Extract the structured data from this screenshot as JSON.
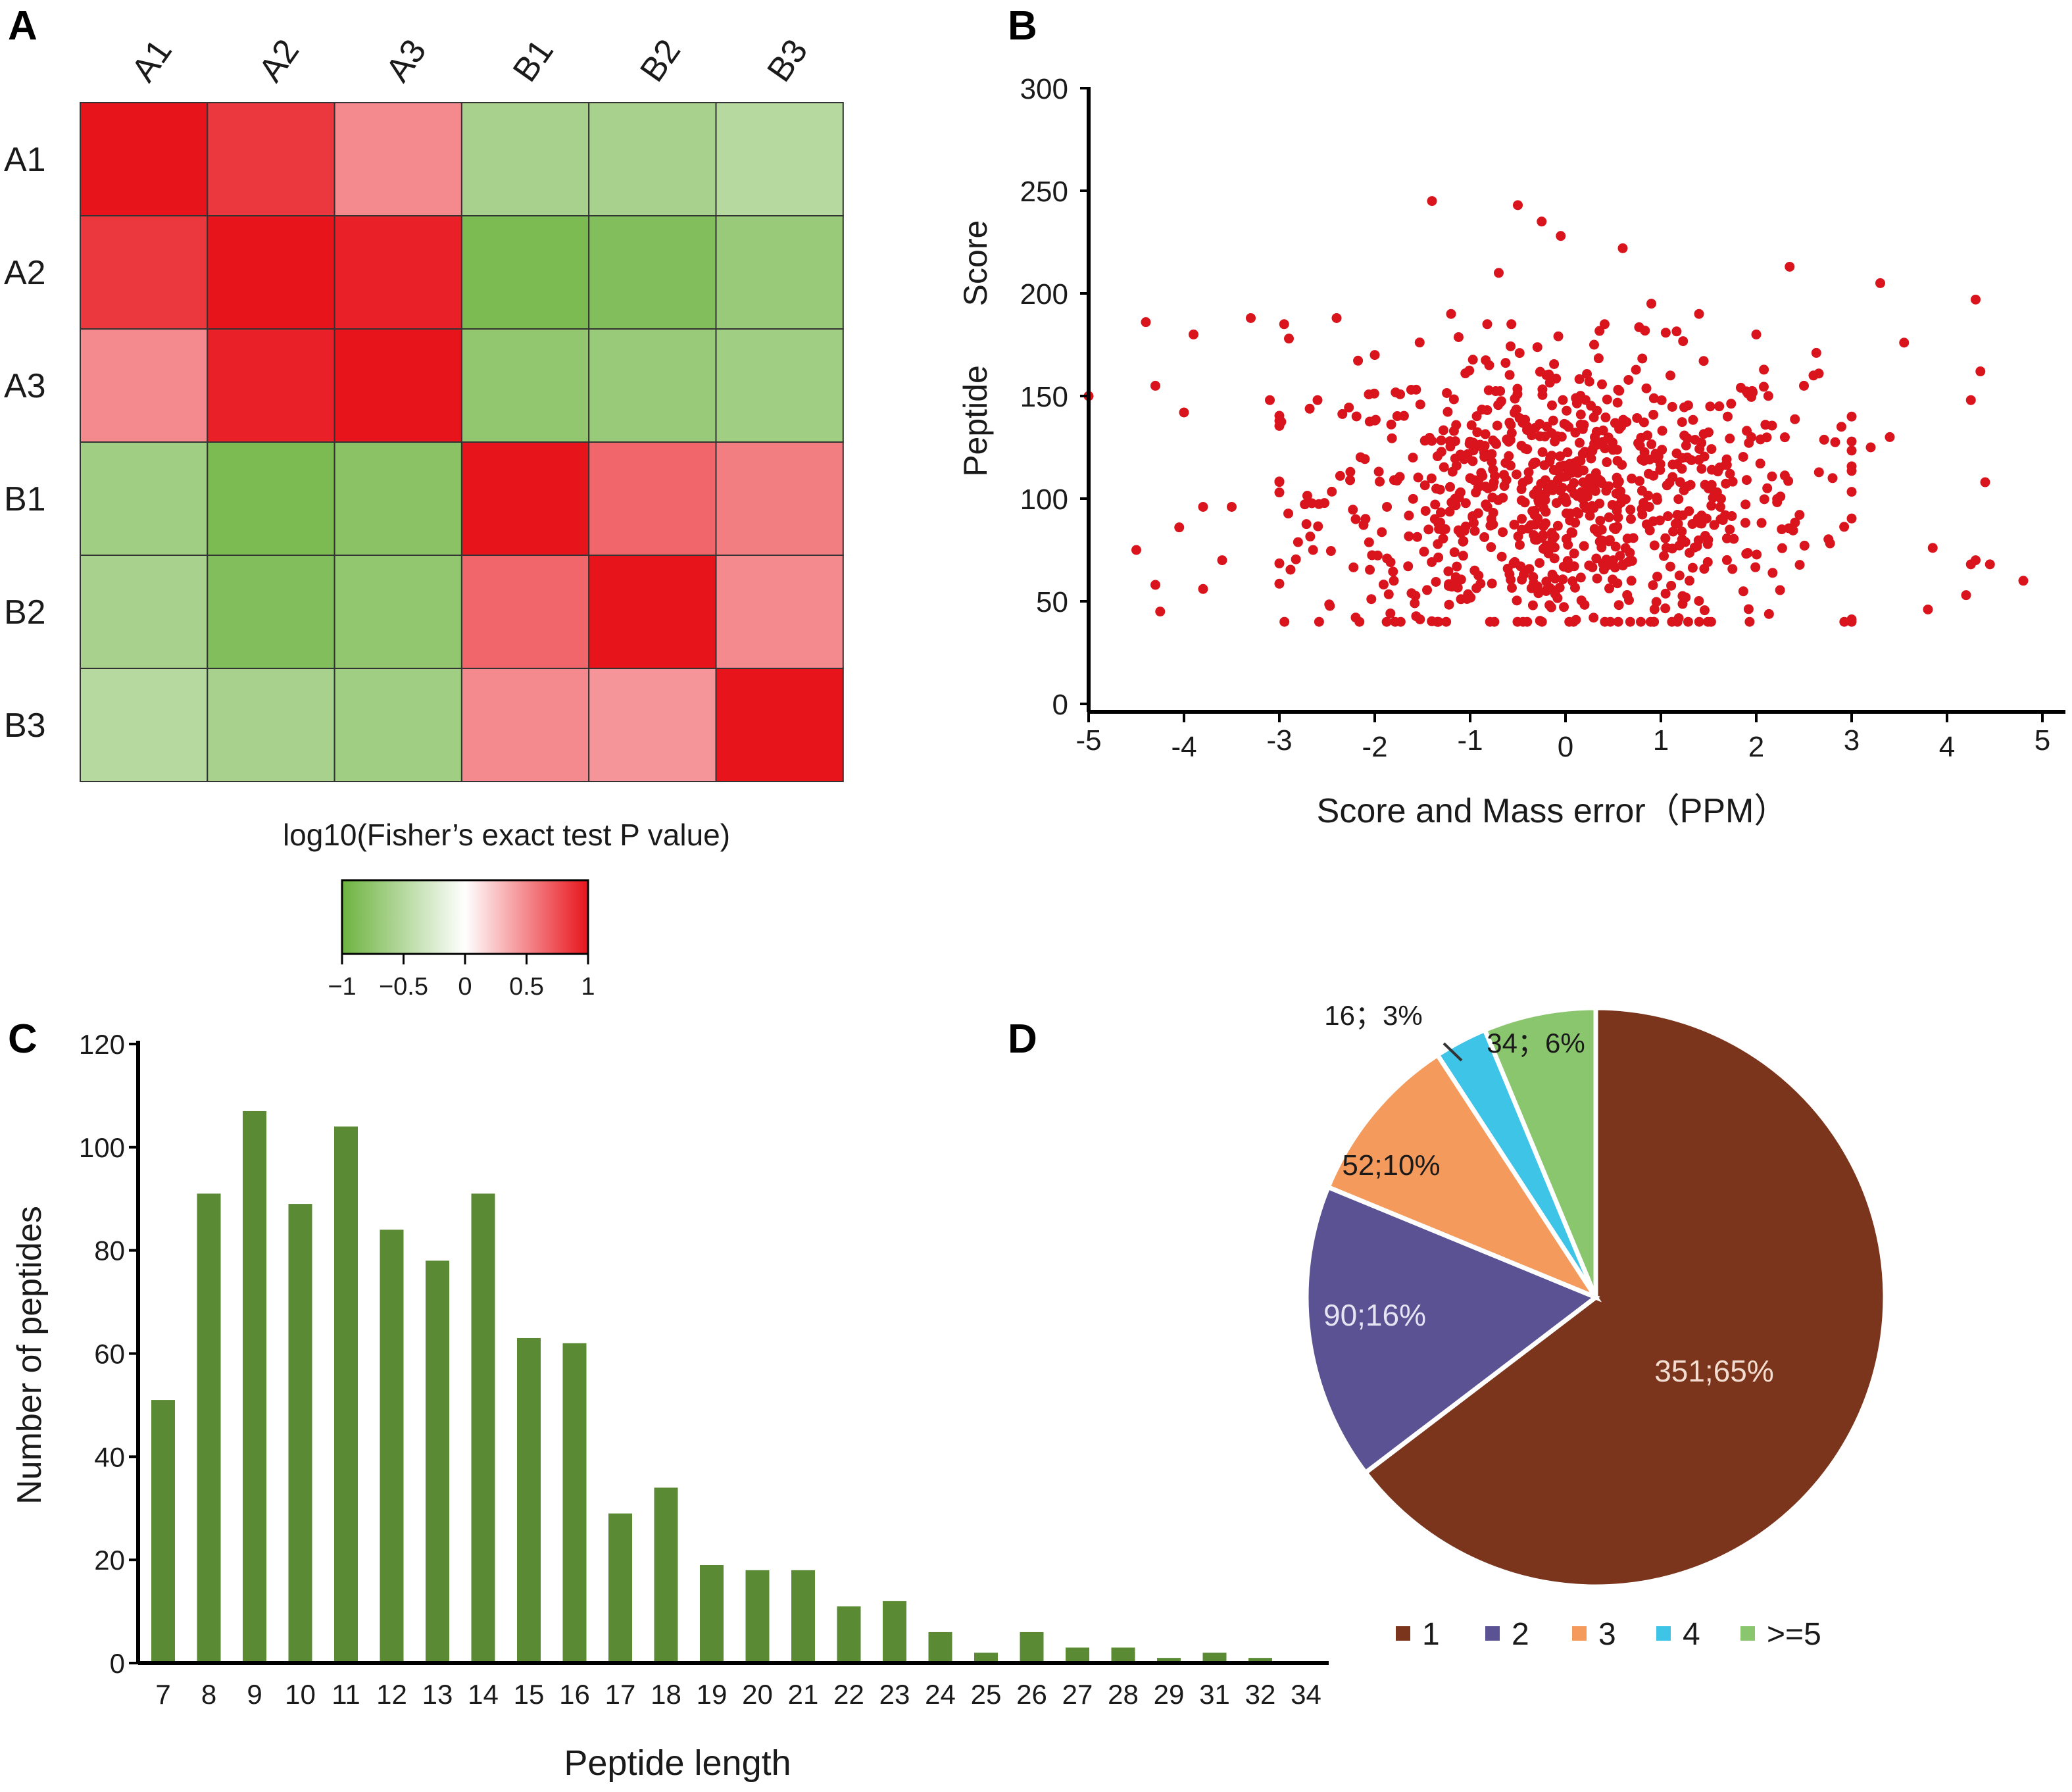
{
  "panels": {
    "A": {
      "letter": "A"
    },
    "B": {
      "letter": "B"
    },
    "C": {
      "letter": "C"
    },
    "D": {
      "letter": "D"
    }
  },
  "chart_data": [
    {
      "type": "heatmap",
      "panel": "A",
      "rows": [
        "A1",
        "A2",
        "A3",
        "B1",
        "B2",
        "B3"
      ],
      "columns": [
        "A1",
        "A2",
        "A3",
        "B1",
        "B2",
        "B3"
      ],
      "values": [
        [
          1.0,
          0.85,
          0.5,
          -0.6,
          -0.6,
          -0.5
        ],
        [
          0.85,
          1.0,
          0.95,
          -0.9,
          -0.85,
          -0.7
        ],
        [
          0.5,
          0.95,
          1.0,
          -0.75,
          -0.7,
          -0.65
        ],
        [
          -0.65,
          -0.9,
          -0.8,
          1.0,
          0.65,
          0.55
        ],
        [
          -0.6,
          -0.85,
          -0.75,
          0.65,
          1.0,
          0.5
        ],
        [
          -0.5,
          -0.6,
          -0.65,
          0.5,
          0.45,
          1.0
        ]
      ],
      "legend_title": "log10(Fisher’s exact test P value)",
      "legend_ticks": [
        "−1",
        "−0.5",
        "0",
        "0.5",
        "1"
      ],
      "legend_tick_values": [
        -1,
        -0.5,
        0,
        0.5,
        1
      ],
      "colors": {
        "low": "#6db33f",
        "mid": "#ffffff",
        "high": "#e8141c"
      }
    },
    {
      "type": "scatter",
      "panel": "B",
      "ylabel_word1": "Peptide",
      "ylabel_word2": "Score",
      "xlabel": "Score and Mass error（PPM）",
      "xlim": [
        -5,
        5
      ],
      "ylim": [
        0,
        300
      ],
      "xticks": [
        -5,
        -4,
        -3,
        -2,
        -1,
        0,
        1,
        2,
        3,
        4,
        5
      ],
      "xtick_labels": [
        "-5",
        "-4",
        "-3",
        "-2",
        "-1",
        "0",
        "1",
        "2",
        "3",
        "4",
        "5"
      ],
      "yticks": [
        0,
        50,
        100,
        150,
        200,
        250,
        300
      ],
      "ytick_labels": [
        "0",
        "50",
        "100",
        "150",
        "200",
        "250",
        "300"
      ],
      "point_color": "#d9141c",
      "points": {
        "x": [
          -5.0,
          -4.5,
          -4.4,
          -4.3,
          -4.25,
          -4.0,
          -3.9,
          -3.8,
          -3.6,
          -3.5,
          -3.3,
          -3.1,
          -2.95,
          -2.9,
          -2.6,
          -2.4,
          -1.4,
          -0.5,
          -0.25,
          -0.05,
          0.6,
          2.35,
          3.3,
          3.55,
          4.3,
          4.35,
          4.4,
          4.25,
          4.3,
          4.2,
          3.85,
          3.8,
          4.25,
          4.45,
          4.8,
          -4.05,
          -4.3,
          -3.8,
          -2.0,
          -1.8,
          -1.2,
          -0.7,
          0.9,
          1.4,
          2.0,
          2.6,
          3.0,
          3.4,
          -1.6,
          -0.8,
          0.3,
          1.1,
          1.7,
          2.5,
          3.2,
          -2.2,
          -1.0,
          0.0,
          0.8,
          1.5,
          -0.3,
          0.5,
          -1.3,
          1.3,
          2.8
        ],
        "y": [
          150,
          75,
          186,
          155,
          45,
          142,
          180,
          96,
          70,
          96,
          188,
          148,
          185,
          178,
          148,
          188,
          245,
          243,
          235,
          228,
          222,
          213,
          205,
          176,
          197,
          162,
          108,
          148,
          70,
          53,
          76,
          46,
          68,
          68,
          60,
          86,
          58,
          56,
          170,
          60,
          190,
          210,
          195,
          190,
          180,
          160,
          140,
          130,
          120,
          165,
          175,
          160,
          140,
          155,
          125,
          90,
          110,
          100,
          95,
          105,
          80,
          70,
          85,
          60,
          110
        ]
      },
      "points_generated": {
        "count": 820,
        "x_mean": 0.0,
        "x_sd": 1.3,
        "y_mean": 100,
        "y_sd": 35,
        "y_min": 40,
        "y_max": 185
      }
    },
    {
      "type": "bar",
      "panel": "C",
      "ylabel": "Number of peptides",
      "xlabel": "Peptide length",
      "ylim": [
        0,
        120
      ],
      "yticks": [
        0,
        20,
        40,
        60,
        80,
        100,
        120
      ],
      "ytick_labels": [
        "0",
        "20",
        "40",
        "60",
        "80",
        "100",
        "120"
      ],
      "categories": [
        "7",
        "8",
        "9",
        "10",
        "11",
        "12",
        "13",
        "14",
        "15",
        "16",
        "17",
        "18",
        "19",
        "20",
        "21",
        "22",
        "23",
        "24",
        "25",
        "26",
        "27",
        "28",
        "29",
        "31",
        "32",
        "34"
      ],
      "values": [
        51,
        91,
        107,
        89,
        104,
        84,
        78,
        91,
        63,
        62,
        29,
        34,
        19,
        18,
        18,
        11,
        12,
        6,
        2,
        6,
        3,
        3,
        1,
        2,
        1,
        0
      ],
      "bar_color": "#5a8a34"
    },
    {
      "type": "pie",
      "panel": "D",
      "start": "top",
      "direction": "clockwise",
      "slices": [
        {
          "name": "1",
          "value": 351,
          "label": "351;65%",
          "color": "#7a351c",
          "label_color": "#f2ddd0"
        },
        {
          "name": "2",
          "value": 90,
          "label": "90;16%",
          "color": "#5a5292",
          "label_color": "#e6e4f2"
        },
        {
          "name": "3",
          "value": 52,
          "label": "52;10%",
          "color": "#f39a5c",
          "label_color": "#1a1a1a"
        },
        {
          "name": "4",
          "value": 16,
          "label": "16；3%",
          "color": "#3ec4e6",
          "label_color": "#1a1a1a"
        },
        {
          "name": ">=5",
          "value": 34,
          "label": "34；6%",
          "color": "#8ac66e",
          "label_color": "#1a1a1a"
        }
      ],
      "legend": [
        "1",
        "2",
        "3",
        "4",
        ">=5"
      ]
    }
  ]
}
